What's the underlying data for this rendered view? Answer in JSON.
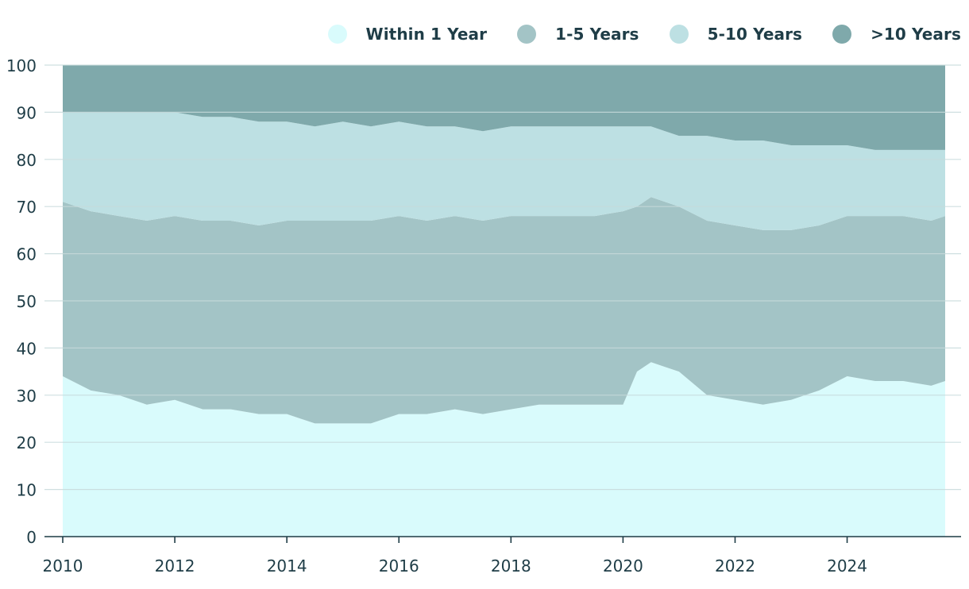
{
  "colors": {
    "within_1_year": "#d9fbfc",
    "one_to_five": "#a3c4c6",
    "five_to_ten": "#bde0e3",
    "over_ten": "#7fa9ab",
    "axis_text": "#1f3d47",
    "grid": "#c7dadb"
  },
  "legend": {
    "items": [
      {
        "label": "Within 1 Year",
        "color": "#d9fbfc"
      },
      {
        "label": "1-5 Years",
        "color": "#a3c4c6"
      },
      {
        "label": "5-10 Years",
        "color": "#bde0e3"
      },
      {
        "label": ">10 Years",
        "color": "#7fa9ab"
      }
    ]
  },
  "chart_data": {
    "type": "area",
    "stacked": true,
    "title": "",
    "xlabel": "",
    "ylabel": "",
    "xlim": [
      2010,
      2025.75
    ],
    "ylim": [
      0,
      100
    ],
    "y_ticks": [
      0,
      10,
      20,
      30,
      40,
      50,
      60,
      70,
      80,
      90,
      100
    ],
    "x_ticks": [
      2010,
      2012,
      2014,
      2016,
      2018,
      2020,
      2022,
      2024
    ],
    "grid": true,
    "legend_position": "top-right",
    "x": [
      2010.0,
      2010.5,
      2011.0,
      2011.5,
      2012.0,
      2012.5,
      2013.0,
      2013.5,
      2014.0,
      2014.5,
      2015.0,
      2015.5,
      2016.0,
      2016.5,
      2017.0,
      2017.5,
      2018.0,
      2018.5,
      2019.0,
      2019.5,
      2020.0,
      2020.25,
      2020.5,
      2020.75,
      2021.0,
      2021.5,
      2022.0,
      2022.5,
      2023.0,
      2023.5,
      2024.0,
      2024.5,
      2025.0,
      2025.5,
      2025.75
    ],
    "series": [
      {
        "name": "Within 1 Year",
        "values": [
          34,
          31,
          30,
          28,
          29,
          27,
          27,
          26,
          26,
          24,
          24,
          24,
          26,
          26,
          27,
          26,
          27,
          28,
          28,
          28,
          28,
          35,
          37,
          36,
          35,
          30,
          29,
          28,
          29,
          31,
          34,
          33,
          33,
          32,
          33
        ]
      },
      {
        "name": "1-5 Years",
        "values": [
          37,
          38,
          38,
          39,
          39,
          40,
          40,
          40,
          41,
          43,
          43,
          43,
          42,
          41,
          41,
          41,
          41,
          40,
          40,
          40,
          41,
          35,
          35,
          35,
          35,
          37,
          37,
          37,
          36,
          35,
          34,
          35,
          35,
          35,
          35
        ]
      },
      {
        "name": "5-10 Years",
        "values": [
          19,
          21,
          22,
          23,
          22,
          22,
          22,
          22,
          21,
          20,
          21,
          20,
          20,
          20,
          19,
          19,
          19,
          19,
          19,
          19,
          18,
          17,
          15,
          15,
          15,
          18,
          18,
          19,
          18,
          17,
          15,
          14,
          14,
          15,
          14
        ]
      },
      {
        "name": ">10 Years",
        "values": [
          10,
          10,
          10,
          10,
          10,
          11,
          11,
          12,
          12,
          13,
          12,
          13,
          12,
          13,
          13,
          14,
          13,
          13,
          13,
          13,
          13,
          13,
          13,
          14,
          15,
          15,
          16,
          16,
          17,
          17,
          17,
          18,
          18,
          18,
          18
        ]
      }
    ]
  }
}
